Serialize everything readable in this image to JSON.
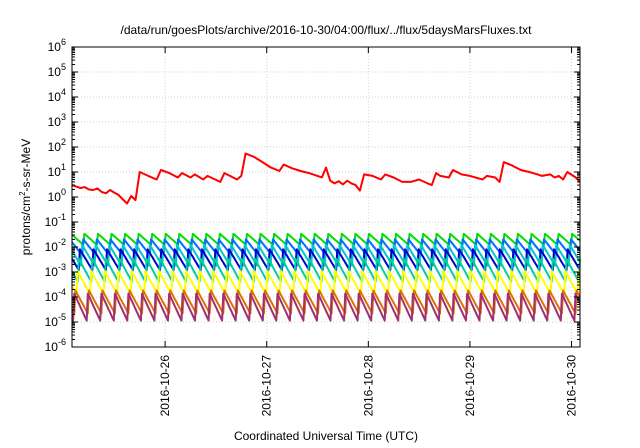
{
  "chart_data": {
    "type": "line",
    "title": "/data/run/goesPlots/archive/2016-10-30/04:00/flux/../flux/5daysMarsFluxes.txt",
    "xlabel": "Coordinated Universal Time (UTC)",
    "ylabel": {
      "prefix": "protons/cm",
      "sup": "2",
      "suffix": "-s-sr-MeV"
    },
    "yscale": "log",
    "ylim": [
      1e-06,
      1000000.0
    ],
    "xlim": [
      "2016-10-25T02:00",
      "2016-10-30T02:00"
    ],
    "y_ticks": [
      {
        "value": 1e-06,
        "base": "10",
        "exp": "-6"
      },
      {
        "value": 1e-05,
        "base": "10",
        "exp": "-5"
      },
      {
        "value": 0.0001,
        "base": "10",
        "exp": "-4"
      },
      {
        "value": 0.001,
        "base": "10",
        "exp": "-3"
      },
      {
        "value": 0.01,
        "base": "10",
        "exp": "-2"
      },
      {
        "value": 0.1,
        "base": "10",
        "exp": "-1"
      },
      {
        "value": 1.0,
        "base": "10",
        "exp": "0"
      },
      {
        "value": 10.0,
        "base": "10",
        "exp": "1"
      },
      {
        "value": 100.0,
        "base": "10",
        "exp": "2"
      },
      {
        "value": 1000.0,
        "base": "10",
        "exp": "3"
      },
      {
        "value": 10000.0,
        "base": "10",
        "exp": "4"
      },
      {
        "value": 100000.0,
        "base": "10",
        "exp": "5"
      },
      {
        "value": 1000000.0,
        "base": "10",
        "exp": "6"
      }
    ],
    "x_ticks": [
      {
        "value": "2016-10-26T00:00",
        "label": "2016-10-26"
      },
      {
        "value": "2016-10-27T00:00",
        "label": "2016-10-27"
      },
      {
        "value": "2016-10-28T00:00",
        "label": "2016-10-28"
      },
      {
        "value": "2016-10-29T00:00",
        "label": "2016-10-29"
      },
      {
        "value": "2016-10-30T00:00",
        "label": "2016-10-30"
      }
    ],
    "grid": true,
    "legend": "none",
    "series": [
      {
        "color": "#ff0000",
        "points": [
          [
            "2016-10-25T02:00",
            3
          ],
          [
            "2016-10-25T03:00",
            2.6
          ],
          [
            "2016-10-25T04:00",
            2.3
          ],
          [
            "2016-10-25T05:00",
            2.5
          ],
          [
            "2016-10-25T06:00",
            2.0
          ],
          [
            "2016-10-25T07:00",
            1.9
          ],
          [
            "2016-10-25T08:00",
            2.2
          ],
          [
            "2016-10-25T09:00",
            1.6
          ],
          [
            "2016-10-25T10:00",
            1.4
          ],
          [
            "2016-10-25T11:00",
            1.9
          ],
          [
            "2016-10-25T12:00",
            1.5
          ],
          [
            "2016-10-25T13:00",
            1.2
          ],
          [
            "2016-10-25T14:00",
            0.8
          ],
          [
            "2016-10-25T15:00",
            0.55
          ],
          [
            "2016-10-25T16:00",
            1.1
          ],
          [
            "2016-10-25T17:00",
            0.75
          ],
          [
            "2016-10-25T18:00",
            10
          ],
          [
            "2016-10-25T20:00",
            7
          ],
          [
            "2016-10-25T22:00",
            5
          ],
          [
            "2016-10-25T23:00",
            12
          ],
          [
            "2016-10-26T01:00",
            9
          ],
          [
            "2016-10-26T03:00",
            6
          ],
          [
            "2016-10-26T04:00",
            9
          ],
          [
            "2016-10-26T06:00",
            6
          ],
          [
            "2016-10-26T07:00",
            8
          ],
          [
            "2016-10-26T09:00",
            5
          ],
          [
            "2016-10-26T10:00",
            7
          ],
          [
            "2016-10-26T13:00",
            4
          ],
          [
            "2016-10-26T14:00",
            9
          ],
          [
            "2016-10-26T17:00",
            5
          ],
          [
            "2016-10-26T18:00",
            7
          ],
          [
            "2016-10-26T19:00",
            55
          ],
          [
            "2016-10-26T21:00",
            40
          ],
          [
            "2016-10-26T23:00",
            25
          ],
          [
            "2016-10-27T01:00",
            15
          ],
          [
            "2016-10-27T03:00",
            11
          ],
          [
            "2016-10-27T04:00",
            20
          ],
          [
            "2016-10-27T06:00",
            14
          ],
          [
            "2016-10-27T08:00",
            11
          ],
          [
            "2016-10-27T10:00",
            9
          ],
          [
            "2016-10-27T12:00",
            7
          ],
          [
            "2016-10-27T13:00",
            6
          ],
          [
            "2016-10-27T14:00",
            15
          ],
          [
            "2016-10-27T15:00",
            4.5
          ],
          [
            "2016-10-27T16:00",
            3.5
          ],
          [
            "2016-10-27T17:00",
            4.3
          ],
          [
            "2016-10-27T18:00",
            3.2
          ],
          [
            "2016-10-27T19:00",
            4.5
          ],
          [
            "2016-10-27T20:00",
            3.5
          ],
          [
            "2016-10-27T21:00",
            3
          ],
          [
            "2016-10-27T22:00",
            1.8
          ],
          [
            "2016-10-27T23:00",
            8
          ],
          [
            "2016-10-28T01:00",
            7
          ],
          [
            "2016-10-28T03:00",
            5
          ],
          [
            "2016-10-28T04:00",
            8
          ],
          [
            "2016-10-28T06:00",
            6
          ],
          [
            "2016-10-28T08:00",
            4
          ],
          [
            "2016-10-28T10:00",
            4
          ],
          [
            "2016-10-28T12:00",
            5
          ],
          [
            "2016-10-28T14:00",
            3.5
          ],
          [
            "2016-10-28T15:00",
            3
          ],
          [
            "2016-10-28T16:00",
            9
          ],
          [
            "2016-10-28T17:00",
            7
          ],
          [
            "2016-10-28T19:00",
            6
          ],
          [
            "2016-10-28T20:00",
            12
          ],
          [
            "2016-10-28T22:00",
            8
          ],
          [
            "2016-10-29T00:00",
            7
          ],
          [
            "2016-10-29T03:00",
            5
          ],
          [
            "2016-10-29T04:00",
            7
          ],
          [
            "2016-10-29T06:00",
            6
          ],
          [
            "2016-10-29T07:00",
            4
          ],
          [
            "2016-10-29T08:00",
            25
          ],
          [
            "2016-10-29T10:00",
            18
          ],
          [
            "2016-10-29T12:00",
            12
          ],
          [
            "2016-10-29T14:00",
            10
          ],
          [
            "2016-10-29T16:00",
            8
          ],
          [
            "2016-10-29T17:00",
            7
          ],
          [
            "2016-10-29T19:00",
            8
          ],
          [
            "2016-10-29T20:00",
            6
          ],
          [
            "2016-10-29T21:00",
            7
          ],
          [
            "2016-10-29T22:00",
            5
          ],
          [
            "2016-10-29T23:00",
            10
          ],
          [
            "2016-10-30T01:00",
            6
          ],
          [
            "2016-10-30T02:00",
            4
          ]
        ]
      },
      {
        "color": "#00e000",
        "base": 0.02,
        "amp": 3,
        "period_h": 3.2
      },
      {
        "color": "#0070ff",
        "base": 0.01,
        "amp": 5,
        "period_h": 3.2
      },
      {
        "color": "#00c8c8",
        "base": 0.005,
        "amp": 8,
        "period_h": 3.2
      },
      {
        "color": "#0000c8",
        "base": 0.003,
        "amp": 8,
        "period_h": 3.2
      },
      {
        "color": "#00d0a0",
        "base": 0.0012,
        "amp": 10,
        "period_h": 3.2
      },
      {
        "color": "#ffff00",
        "base": 0.0004,
        "amp": 10,
        "period_h": 3.2
      },
      {
        "color": "#e07000",
        "base": 6e-05,
        "amp": 10,
        "period_h": 3.2
      },
      {
        "color": "#a03070",
        "base": 4e-05,
        "amp": 15,
        "period_h": 3.2
      }
    ]
  }
}
